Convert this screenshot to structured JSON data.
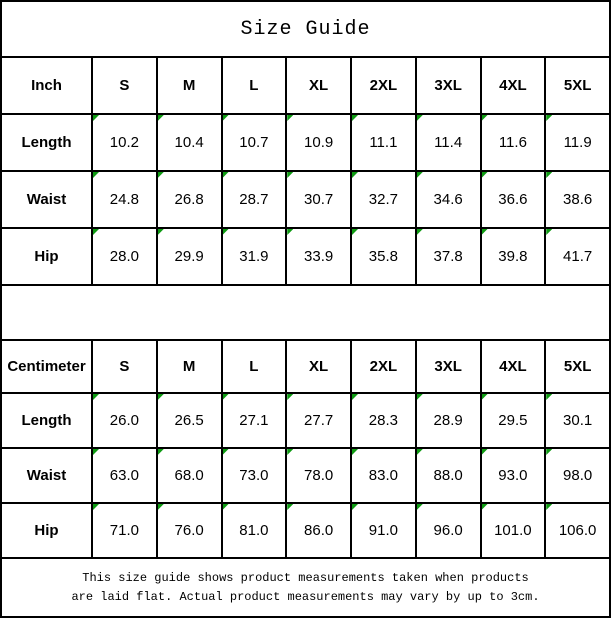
{
  "title": "Size Guide",
  "colors": {
    "border": "#000000",
    "background": "#ffffff",
    "flag_triangle_green": "#0f9b13"
  },
  "icons": {
    "cell_flag": "green-corner-triangle"
  },
  "tables": [
    {
      "unit": "Inch",
      "sizes": [
        "S",
        "M",
        "L",
        "XL",
        "2XL",
        "3XL",
        "4XL",
        "5XL"
      ],
      "rows": [
        {
          "label": "Length",
          "values": [
            "10.2",
            "10.4",
            "10.7",
            "10.9",
            "11.1",
            "11.4",
            "11.6",
            "11.9"
          ]
        },
        {
          "label": "Waist",
          "values": [
            "24.8",
            "26.8",
            "28.7",
            "30.7",
            "32.7",
            "34.6",
            "36.6",
            "38.6"
          ]
        },
        {
          "label": "Hip",
          "values": [
            "28.0",
            "29.9",
            "31.9",
            "33.9",
            "35.8",
            "37.8",
            "39.8",
            "41.7"
          ]
        }
      ]
    },
    {
      "unit": "Centimeter",
      "sizes": [
        "S",
        "M",
        "L",
        "XL",
        "2XL",
        "3XL",
        "4XL",
        "5XL"
      ],
      "rows": [
        {
          "label": "Length",
          "values": [
            "26.0",
            "26.5",
            "27.1",
            "27.7",
            "28.3",
            "28.9",
            "29.5",
            "30.1"
          ]
        },
        {
          "label": "Waist",
          "values": [
            "63.0",
            "68.0",
            "73.0",
            "78.0",
            "83.0",
            "88.0",
            "93.0",
            "98.0"
          ]
        },
        {
          "label": "Hip",
          "values": [
            "71.0",
            "76.0",
            "81.0",
            "86.0",
            "91.0",
            "96.0",
            "101.0",
            "106.0"
          ]
        }
      ]
    }
  ],
  "footer": {
    "line1": "This size guide shows product measurements taken when products",
    "line2": "are laid flat. Actual product measurements may vary by up to 3cm."
  }
}
